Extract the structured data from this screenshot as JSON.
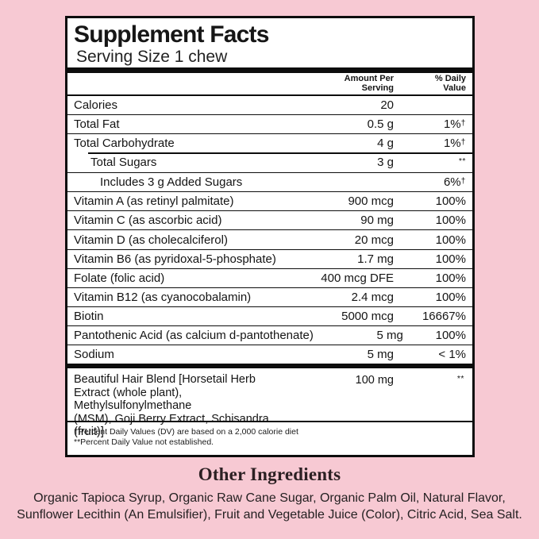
{
  "colors": {
    "background": "#f7c9d3",
    "panel_bg": "#ffffff",
    "line": "#0d0d0d",
    "heading_text": "#2c2023"
  },
  "panel": {
    "title": "Supplement Facts",
    "serving_size": "Serving Size 1 chew",
    "columns": {
      "amount": "Amount Per\nServing",
      "daily_value": "% Daily\nValue"
    },
    "rows": [
      {
        "name": "Calories",
        "amount": "20",
        "dv": "",
        "dv_sup": ""
      },
      {
        "name": "Total Fat",
        "amount": "0.5 g",
        "dv": "1%",
        "dv_sup": "†"
      },
      {
        "name": "Total Carbohydrate",
        "amount": "4 g",
        "dv": "1%",
        "dv_sup": "†"
      },
      {
        "name": "Total Sugars",
        "amount": "3 g",
        "dv": "",
        "dv_sup": "**"
      },
      {
        "name": "Includes 3 g Added Sugars",
        "amount": "",
        "dv": "6%",
        "dv_sup": "†"
      },
      {
        "name": "Vitamin A (as retinyl palmitate)",
        "amount": "900 mcg",
        "dv": "100%",
        "dv_sup": ""
      },
      {
        "name": "Vitamin C (as ascorbic acid)",
        "amount": "90 mg",
        "dv": "100%",
        "dv_sup": ""
      },
      {
        "name": "Vitamin D (as cholecalciferol)",
        "amount": "20 mcg",
        "dv": "100%",
        "dv_sup": ""
      },
      {
        "name": "Vitamin B6 (as pyridoxal-5-phosphate)",
        "amount": "1.7 mg",
        "dv": "100%",
        "dv_sup": ""
      },
      {
        "name": "Folate (folic acid)",
        "amount": "400 mcg DFE",
        "dv": "100%",
        "dv_sup": ""
      },
      {
        "name": "Vitamin B12 (as cyanocobalamin)",
        "amount": "2.4 mcg",
        "dv": "100%",
        "dv_sup": ""
      },
      {
        "name": "Biotin",
        "amount": "5000 mcg",
        "dv": "16667%",
        "dv_sup": ""
      },
      {
        "name": "Pantothenic Acid (as calcium d-pantothenate)",
        "amount": "5 mg",
        "dv": "100%",
        "dv_sup": ""
      },
      {
        "name": "Sodium",
        "amount": "5 mg",
        "dv": "< 1%",
        "dv_sup": ""
      }
    ],
    "blend": {
      "name": "Beautiful Hair Blend [Horsetail Herb\nExtract (whole plant), Methylsulfonylmethane\n(MSM), Goji Berry Extract, Schisandra (fruit)]",
      "amount": "100 mg",
      "dv_sup": "**"
    },
    "footnotes": [
      "†Percent Daily Values (DV) are based on a 2,000 calorie diet",
      "**Percent Daily Value not established."
    ]
  },
  "other_ingredients": {
    "heading": "Other Ingredients",
    "text": "Organic Tapioca Syrup, Organic Raw Cane Sugar, Organic Palm Oil, Natural Flavor, Sunflower Lecithin (An Emulsifier), Fruit and Vegetable Juice (Color), Citric Acid, Sea Salt."
  }
}
